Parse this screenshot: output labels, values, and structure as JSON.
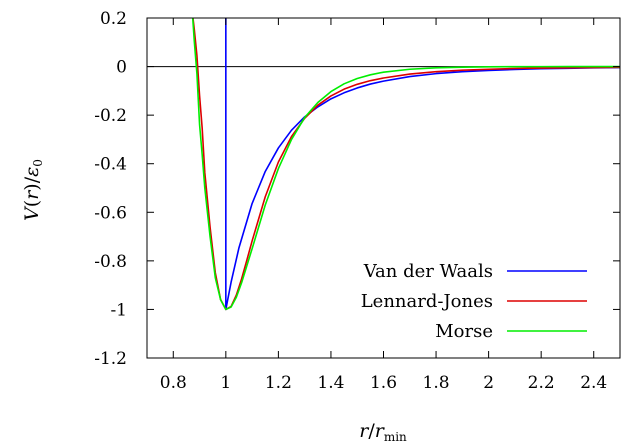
{
  "chart_data": {
    "type": "line",
    "title": "",
    "xlabel": "r/r_min",
    "ylabel": "V(r)/ε_0",
    "xlim": [
      0.7,
      2.5
    ],
    "ylim": [
      -1.2,
      0.2
    ],
    "xticks": [
      {
        "value": 0.8,
        "label": "0.8"
      },
      {
        "value": 1.0,
        "label": "1"
      },
      {
        "value": 1.2,
        "label": "1.2"
      },
      {
        "value": 1.4,
        "label": "1.4"
      },
      {
        "value": 1.6,
        "label": "1.6"
      },
      {
        "value": 1.8,
        "label": "1.8"
      },
      {
        "value": 2.0,
        "label": "2"
      },
      {
        "value": 2.2,
        "label": "2.2"
      },
      {
        "value": 2.4,
        "label": "2.4"
      }
    ],
    "yticks": [
      {
        "value": 0.2,
        "label": "0.2"
      },
      {
        "value": 0,
        "label": "0"
      },
      {
        "value": -0.2,
        "label": "-0.2"
      },
      {
        "value": -0.4,
        "label": "-0.4"
      },
      {
        "value": -0.6,
        "label": "-0.6"
      },
      {
        "value": -0.8,
        "label": "-0.8"
      },
      {
        "value": -1.0,
        "label": "-1"
      },
      {
        "value": -1.2,
        "label": "-1.2"
      }
    ],
    "grid": false,
    "zero_line": true,
    "legend_position": "bottom-right",
    "series": [
      {
        "name": "Van der Waals",
        "color": "#0000ff",
        "x": [
          1.0,
          1.0,
          1.02,
          1.05,
          1.1,
          1.15,
          1.2,
          1.25,
          1.3,
          1.35,
          1.4,
          1.45,
          1.5,
          1.55,
          1.6,
          1.7,
          1.8,
          1.9,
          2.0,
          2.1,
          2.2,
          2.3,
          2.4,
          2.5
        ],
        "y": [
          0.2,
          -1.0,
          -0.888,
          -0.746,
          -0.564,
          -0.432,
          -0.335,
          -0.262,
          -0.207,
          -0.166,
          -0.133,
          -0.108,
          -0.088,
          -0.072,
          -0.06,
          -0.041,
          -0.029,
          -0.021,
          -0.016,
          -0.012,
          -0.009,
          -0.007,
          -0.005,
          -0.004
        ]
      },
      {
        "name": "Lennard-Jones",
        "color": "#dd0000",
        "x": [
          0.875,
          0.88,
          0.89,
          0.9,
          0.91,
          0.92,
          0.94,
          0.96,
          0.98,
          1.0,
          1.02,
          1.04,
          1.06,
          1.08,
          1.1,
          1.15,
          1.2,
          1.25,
          1.3,
          1.35,
          1.4,
          1.45,
          1.5,
          1.55,
          1.6,
          1.7,
          1.8,
          1.9,
          2.0,
          2.1,
          2.2,
          2.3,
          2.4,
          2.5
        ],
        "y": [
          0.2,
          0.153,
          0.045,
          -0.119,
          -0.254,
          -0.437,
          -0.661,
          -0.849,
          -0.959,
          -1.0,
          -0.988,
          -0.941,
          -0.874,
          -0.797,
          -0.718,
          -0.536,
          -0.393,
          -0.288,
          -0.213,
          -0.159,
          -0.121,
          -0.093,
          -0.073,
          -0.058,
          -0.047,
          -0.031,
          -0.021,
          -0.015,
          -0.011,
          -0.008,
          -0.006,
          -0.005,
          -0.004,
          -0.003
        ]
      },
      {
        "name": "Morse",
        "color": "#00ee00",
        "x": [
          0.874,
          0.88,
          0.89,
          0.9,
          0.91,
          0.92,
          0.94,
          0.96,
          0.98,
          1.0,
          1.02,
          1.04,
          1.06,
          1.08,
          1.1,
          1.15,
          1.2,
          1.25,
          1.3,
          1.35,
          1.4,
          1.45,
          1.5,
          1.55,
          1.6,
          1.7,
          1.8,
          1.9,
          2.0,
          2.1,
          2.2,
          2.3,
          2.4,
          2.5
        ],
        "y": [
          0.2,
          0.104,
          -0.03,
          -0.238,
          -0.363,
          -0.5,
          -0.7,
          -0.87,
          -0.96,
          -1.0,
          -0.99,
          -0.95,
          -0.89,
          -0.82,
          -0.75,
          -0.57,
          -0.42,
          -0.3,
          -0.21,
          -0.148,
          -0.103,
          -0.071,
          -0.049,
          -0.034,
          -0.023,
          -0.011,
          -0.005,
          -0.0025,
          -0.001,
          -0.0005,
          -0.0002,
          -0.0001,
          0,
          0
        ]
      }
    ]
  }
}
